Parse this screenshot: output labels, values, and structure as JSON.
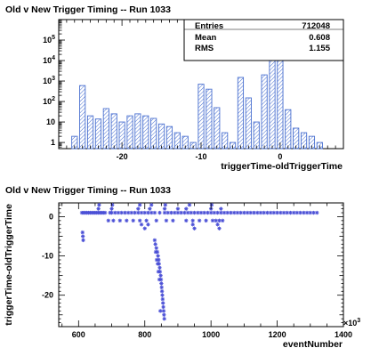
{
  "chart_data": [
    {
      "type": "bar",
      "title": "Old v New Trigger Timing -- Run 1033",
      "xlabel": "triggerTime-oldTriggerTime",
      "ylabel": "",
      "xlim": [
        -28,
        8
      ],
      "ylim": [
        0.5,
        1000000
      ],
      "log_y": true,
      "x_ticks": [
        -20,
        -10,
        0
      ],
      "y_ticks": [
        {
          "value": 1,
          "label": "1"
        },
        {
          "value": 10,
          "label": "10"
        },
        {
          "value": 100,
          "label": "10",
          "sup": "2"
        },
        {
          "value": 1000,
          "label": "10",
          "sup": "3"
        },
        {
          "value": 10000,
          "label": "10",
          "sup": "4"
        },
        {
          "value": 100000,
          "label": "10",
          "sup": "5"
        }
      ],
      "bin_width": 1,
      "x": [
        -26,
        -25,
        -24,
        -23,
        -22,
        -21,
        -20,
        -19,
        -18,
        -17,
        -16,
        -15,
        -14,
        -13,
        -12,
        -11,
        -10,
        -9,
        -8,
        -7,
        -6,
        -5,
        -4,
        -3,
        -2,
        -1,
        0,
        1,
        2,
        3,
        4,
        5
      ],
      "values": [
        2,
        600,
        20,
        14,
        45,
        25,
        10,
        20,
        25,
        20,
        15,
        8,
        6,
        3,
        2,
        1,
        700,
        400,
        50,
        3,
        1,
        1500,
        150,
        10,
        2000,
        20000,
        500000,
        40,
        5,
        3,
        2,
        1
      ],
      "stats": {
        "entries_label": "Entries",
        "entries": "712048",
        "mean_label": "Mean",
        "mean": "0.608",
        "rms_label": "RMS",
        "rms": "1.155"
      }
    },
    {
      "type": "scatter",
      "title": "Old v New Trigger Timing -- Run 1033",
      "xlabel": "eventNumber",
      "ylabel": "triggerTime-oldTriggerTime",
      "xlim": [
        540,
        1400
      ],
      "ylim": [
        -28,
        3.5
      ],
      "x_ticks": [
        600,
        800,
        1000,
        1200,
        1400
      ],
      "y_ticks": [
        0,
        -10,
        -20
      ],
      "x_exponent_label": "×10",
      "x_exponent_sup": "3",
      "color": "#4a4fd6",
      "points": [
        [
          610,
          1
        ],
        [
          615,
          1
        ],
        [
          620,
          1
        ],
        [
          625,
          1
        ],
        [
          630,
          1
        ],
        [
          635,
          1
        ],
        [
          640,
          1
        ],
        [
          645,
          1
        ],
        [
          650,
          1
        ],
        [
          655,
          1
        ],
        [
          660,
          1
        ],
        [
          665,
          1
        ],
        [
          670,
          1
        ],
        [
          675,
          1
        ],
        [
          680,
          1
        ],
        [
          695,
          1
        ],
        [
          700,
          1
        ],
        [
          710,
          1
        ],
        [
          720,
          1
        ],
        [
          730,
          1
        ],
        [
          740,
          1
        ],
        [
          750,
          1
        ],
        [
          760,
          1
        ],
        [
          770,
          1
        ],
        [
          780,
          1
        ],
        [
          790,
          1
        ],
        [
          800,
          1
        ],
        [
          810,
          1
        ],
        [
          820,
          1
        ],
        [
          830,
          1
        ],
        [
          845,
          1
        ],
        [
          860,
          1
        ],
        [
          870,
          1
        ],
        [
          880,
          1
        ],
        [
          890,
          1
        ],
        [
          900,
          1
        ],
        [
          910,
          1
        ],
        [
          920,
          1
        ],
        [
          930,
          1
        ],
        [
          940,
          1
        ],
        [
          950,
          1
        ],
        [
          960,
          1
        ],
        [
          970,
          1
        ],
        [
          980,
          1
        ],
        [
          990,
          1
        ],
        [
          1000,
          1
        ],
        [
          1010,
          1
        ],
        [
          1020,
          1
        ],
        [
          1030,
          1
        ],
        [
          1040,
          1
        ],
        [
          1050,
          1
        ],
        [
          1060,
          1
        ],
        [
          1070,
          1
        ],
        [
          1080,
          1
        ],
        [
          1090,
          1
        ],
        [
          1100,
          1
        ],
        [
          1110,
          1
        ],
        [
          1120,
          1
        ],
        [
          1130,
          1
        ],
        [
          1140,
          1
        ],
        [
          1150,
          1
        ],
        [
          1160,
          1
        ],
        [
          1170,
          1
        ],
        [
          1180,
          1
        ],
        [
          1190,
          1
        ],
        [
          1200,
          1
        ],
        [
          1210,
          1
        ],
        [
          1220,
          1
        ],
        [
          1230,
          1
        ],
        [
          1240,
          1
        ],
        [
          1250,
          1
        ],
        [
          1260,
          1
        ],
        [
          1270,
          1
        ],
        [
          1280,
          1
        ],
        [
          1290,
          1
        ],
        [
          1300,
          1
        ],
        [
          1310,
          1
        ],
        [
          1320,
          1
        ],
        [
          690,
          -1
        ],
        [
          705,
          -1
        ],
        [
          725,
          -1
        ],
        [
          745,
          -1
        ],
        [
          765,
          -1
        ],
        [
          785,
          -1
        ],
        [
          805,
          -1
        ],
        [
          835,
          -1
        ],
        [
          865,
          -1
        ],
        [
          885,
          -1
        ],
        [
          925,
          -1
        ],
        [
          945,
          -1
        ],
        [
          965,
          -1
        ],
        [
          985,
          -1
        ],
        [
          1005,
          -1
        ],
        [
          1015,
          -1
        ],
        [
          1025,
          -1
        ],
        [
          1035,
          -1
        ],
        [
          612,
          -4
        ],
        [
          613,
          -5
        ],
        [
          614,
          -6
        ],
        [
          660,
          2
        ],
        [
          662,
          3
        ],
        [
          700,
          2
        ],
        [
          702,
          3
        ],
        [
          780,
          2
        ],
        [
          785,
          3
        ],
        [
          790,
          -2
        ],
        [
          800,
          -3
        ],
        [
          810,
          -2
        ],
        [
          815,
          2
        ],
        [
          820,
          3
        ],
        [
          860,
          2
        ],
        [
          862,
          3
        ],
        [
          900,
          2
        ],
        [
          925,
          2
        ],
        [
          935,
          3
        ],
        [
          945,
          -2
        ],
        [
          950,
          -3
        ],
        [
          1000,
          2
        ],
        [
          1002,
          3
        ],
        [
          1020,
          -2
        ],
        [
          1025,
          -3
        ],
        [
          1030,
          2
        ],
        [
          830,
          -6
        ],
        [
          832,
          -7
        ],
        [
          835,
          -8
        ],
        [
          838,
          -9
        ],
        [
          840,
          -10
        ],
        [
          842,
          -11
        ],
        [
          843,
          -12
        ],
        [
          845,
          -13
        ],
        [
          846,
          -14
        ],
        [
          848,
          -15
        ],
        [
          849,
          -16
        ],
        [
          850,
          -17
        ],
        [
          851,
          -18
        ],
        [
          852,
          -19
        ],
        [
          853,
          -20
        ],
        [
          854,
          -21
        ],
        [
          855,
          -22
        ],
        [
          856,
          -23
        ],
        [
          857,
          -24
        ],
        [
          858,
          -25
        ],
        [
          859,
          -26
        ],
        [
          847,
          -24
        ],
        [
          844,
          -16
        ],
        [
          841,
          -14
        ],
        [
          839,
          -12
        ],
        [
          836,
          -11
        ],
        [
          833,
          -9
        ]
      ]
    }
  ]
}
